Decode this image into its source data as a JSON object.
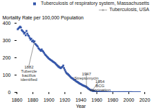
{
  "chart_data": {
    "type": "line",
    "xlabel": "Year",
    "ylabel": "Mortality Rate per 100,000 Population",
    "xlim": [
      1860,
      2020
    ],
    "ylim": [
      0,
      400
    ],
    "xticks": [
      1860,
      1880,
      1900,
      1920,
      1940,
      1960,
      1980,
      2000,
      2020
    ],
    "yticks": [
      0,
      100,
      200,
      300,
      400
    ],
    "legend": "upper right",
    "series": [
      {
        "name": "Tuberculosis of respiratory system, Massachusetts",
        "type": "scatter",
        "marker": "square",
        "color": "#3355aa",
        "x": [
          1861,
          1862,
          1863,
          1864,
          1865,
          1866,
          1867,
          1868,
          1869,
          1870,
          1871,
          1872,
          1873,
          1874,
          1875,
          1876,
          1877,
          1878,
          1879,
          1880,
          1881,
          1882,
          1883,
          1884,
          1885,
          1886,
          1887,
          1888,
          1889,
          1890,
          1891,
          1892,
          1893,
          1894,
          1895,
          1896,
          1897,
          1898,
          1899,
          1900,
          1901,
          1902,
          1903,
          1904,
          1905,
          1906,
          1907,
          1908,
          1909,
          1910,
          1911,
          1912,
          1913,
          1914,
          1915,
          1916,
          1917,
          1918,
          1919,
          1920,
          1921,
          1922,
          1923,
          1924,
          1925,
          1926,
          1927,
          1928,
          1929,
          1930,
          1931,
          1932,
          1933,
          1934,
          1935,
          1936,
          1937,
          1938,
          1939,
          1940,
          1941,
          1942,
          1943,
          1944,
          1945,
          1946,
          1947,
          1948,
          1949,
          1950,
          1951,
          1952,
          1953,
          1954,
          1955,
          1956,
          1957,
          1958,
          1959,
          1960,
          1961,
          1962,
          1963,
          1964,
          1965,
          1966,
          1967,
          1968,
          1969,
          1970,
          1971,
          1972,
          1973,
          1974,
          1975,
          1976,
          1977,
          1978,
          1979,
          1980,
          1981,
          1982,
          1983,
          1984,
          1985,
          1986,
          1987,
          1988,
          1989,
          1990,
          1991,
          1992,
          1993,
          1994,
          1995,
          1996,
          1997,
          1998,
          1999,
          2000,
          2001,
          2002,
          2003,
          2004,
          2005,
          2006,
          2007,
          2008,
          2009,
          2010,
          2011,
          2012,
          2013,
          2014
        ],
        "values": [
          365,
          370,
          375,
          380,
          375,
          360,
          355,
          350,
          340,
          345,
          330,
          355,
          340,
          330,
          325,
          315,
          305,
          310,
          295,
          300,
          290,
          295,
          280,
          275,
          270,
          265,
          255,
          250,
          245,
          240,
          248,
          240,
          235,
          228,
          220,
          215,
          210,
          205,
          200,
          195,
          192,
          188,
          185,
          182,
          178,
          175,
          172,
          168,
          162,
          158,
          153,
          148,
          145,
          142,
          140,
          145,
          148,
          155,
          140,
          130,
          120,
          112,
          108,
          105,
          100,
          95,
          90,
          85,
          82,
          80,
          75,
          72,
          70,
          65,
          62,
          60,
          56,
          53,
          50,
          48,
          45,
          42,
          40,
          38,
          36,
          34,
          32,
          28,
          24,
          20,
          17,
          14,
          12,
          10,
          9,
          8,
          7,
          6,
          5,
          5,
          4,
          4,
          3,
          3,
          3,
          3,
          2,
          2,
          2,
          2,
          2,
          2,
          1,
          1,
          1,
          1,
          1,
          1,
          1,
          1,
          1,
          1,
          1,
          1,
          1,
          1,
          1,
          1,
          1,
          1,
          1,
          1,
          1,
          1,
          1,
          1,
          1,
          1,
          1,
          1,
          1,
          1,
          1,
          1,
          0,
          0,
          0,
          0,
          0,
          0,
          0,
          0,
          0,
          0
        ]
      },
      {
        "name": "Tuberculosis, USA",
        "type": "line",
        "marker": "circle",
        "color": "#aaaaaa",
        "x": [
          1900,
          1901,
          1902,
          1903,
          1904,
          1905,
          1906,
          1907,
          1908,
          1909,
          1910,
          1911,
          1912,
          1913,
          1914,
          1915,
          1916,
          1917,
          1918,
          1919,
          1920,
          1921,
          1922,
          1923,
          1924,
          1925,
          1926,
          1927,
          1928,
          1929,
          1930,
          1931,
          1932,
          1933,
          1934,
          1935,
          1936,
          1937,
          1938,
          1939,
          1940,
          1941,
          1942,
          1943,
          1944,
          1945,
          1946,
          1947,
          1948,
          1949,
          1950,
          1951,
          1952,
          1953,
          1954,
          1955,
          1956,
          1957,
          1958,
          1959,
          1960,
          1961,
          1962,
          1963,
          1964,
          1965,
          1966,
          1967,
          1968,
          1969,
          1970,
          1971,
          1972,
          1973,
          1974,
          1975,
          1976,
          1977,
          1978,
          1979,
          1980,
          1981,
          1982,
          1983,
          1984,
          1985,
          1986,
          1987,
          1988,
          1989,
          1990,
          1991,
          1992,
          1993,
          1994,
          1995,
          1996,
          1997,
          1998,
          1999,
          2000,
          2001,
          2002,
          2003,
          2004,
          2005,
          2006,
          2007,
          2008,
          2009,
          2010,
          2011,
          2012,
          2013,
          2014
        ],
        "values": [
          194,
          191,
          188,
          185,
          182,
          179,
          176,
          173,
          170,
          167,
          160,
          158,
          155,
          152,
          148,
          144,
          144,
          148,
          149,
          137,
          125,
          115,
          107,
          103,
          99,
          95,
          91,
          85,
          82,
          78,
          76,
          71,
          68,
          64,
          62,
          58,
          55,
          52,
          49,
          47,
          45,
          42,
          40,
          37,
          35,
          33,
          29,
          27,
          23,
          19,
          17,
          14,
          12,
          11,
          9,
          8,
          7,
          7,
          6,
          6,
          5,
          5,
          4,
          4,
          4,
          4,
          3,
          3,
          3,
          3,
          3,
          2,
          2,
          2,
          2,
          2,
          2,
          2,
          2,
          2,
          2,
          2,
          1,
          1,
          1,
          1,
          1,
          1,
          1,
          1,
          1,
          1,
          1,
          1,
          1,
          1,
          1,
          1,
          1,
          0,
          0,
          0,
          0,
          0,
          0,
          0,
          0,
          0,
          0,
          0,
          0,
          0,
          0,
          0,
          0
        ]
      }
    ],
    "annotations": [
      {
        "text": "1882\nTubercle\nbacillus\nidentified",
        "xy": [
          1882,
          295
        ],
        "xytext": [
          1875,
          155
        ]
      },
      {
        "text": "1947\nStreptomycin",
        "xy": [
          1947,
          27
        ],
        "xytext": [
          1947,
          115
        ]
      },
      {
        "text": "1954\nBCG\nVaccination",
        "xy": [
          1954,
          9
        ],
        "xytext": [
          1964,
          72
        ]
      }
    ]
  }
}
